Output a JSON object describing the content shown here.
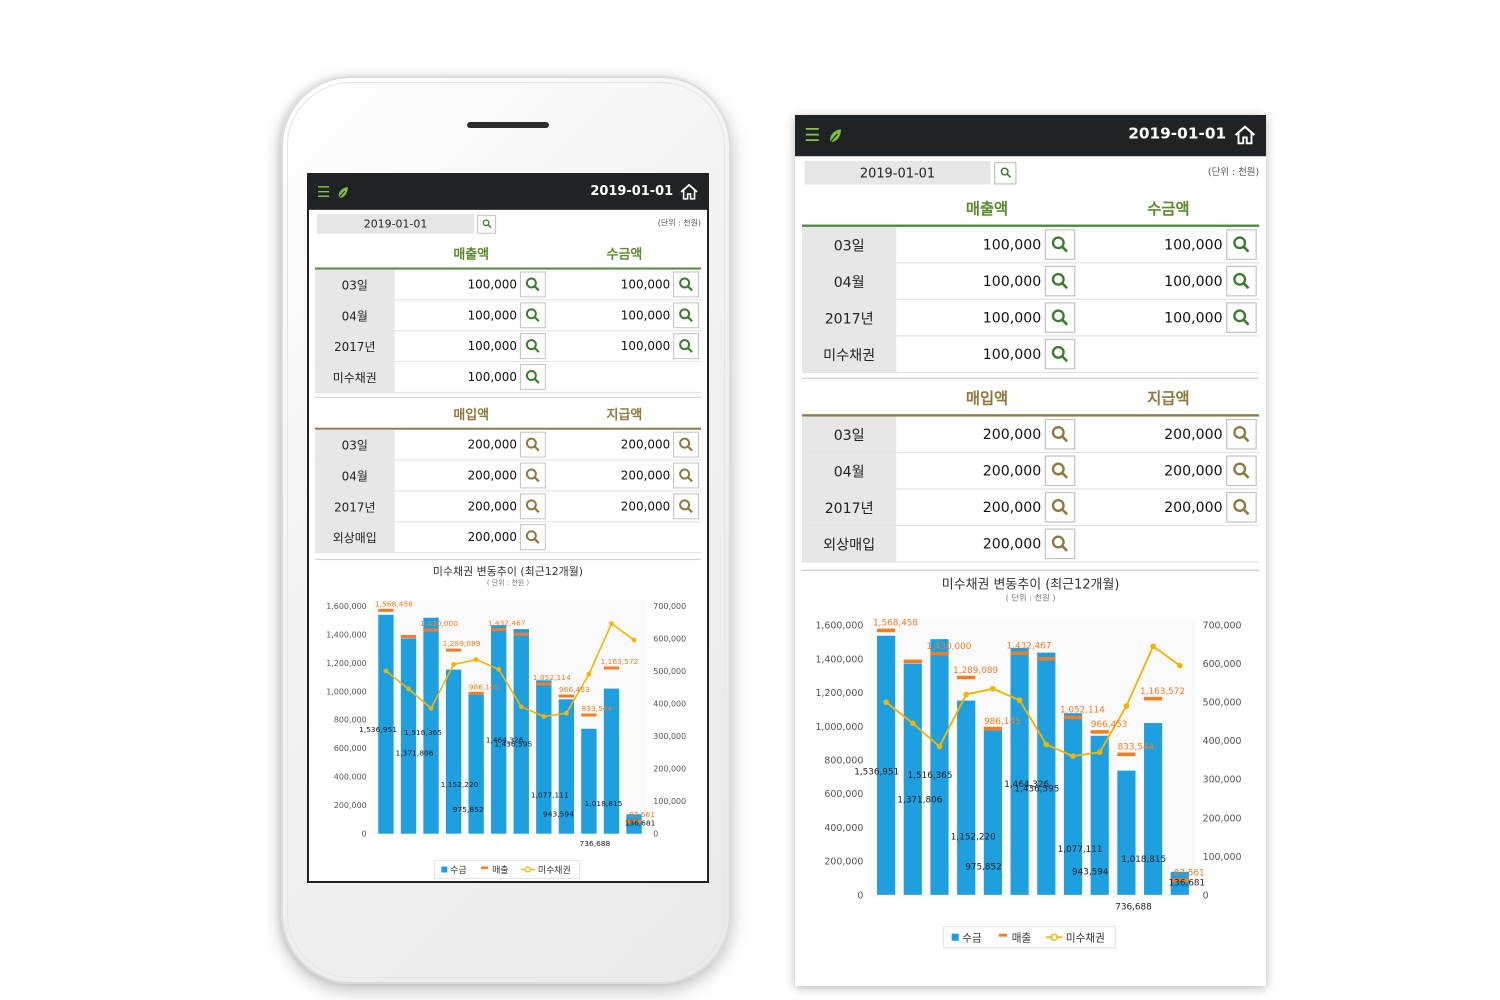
{
  "header": {
    "date": "2019-01-01"
  },
  "filter": {
    "date_value": "2019-01-01",
    "unit_label": "(단위 : 천원)"
  },
  "sales": {
    "headers": [
      "매출액",
      "수금액"
    ],
    "rows": [
      {
        "label": "03일",
        "col1": "100,000",
        "col2": "100,000"
      },
      {
        "label": "04월",
        "col1": "100,000",
        "col2": "100,000"
      },
      {
        "label": "2017년",
        "col1": "100,000",
        "col2": "100,000"
      },
      {
        "label": "미수채권",
        "col1": "100,000",
        "col2": ""
      }
    ]
  },
  "purchase": {
    "headers": [
      "매입액",
      "지급액"
    ],
    "rows": [
      {
        "label": "03일",
        "col1": "200,000",
        "col2": "200,000"
      },
      {
        "label": "04월",
        "col1": "200,000",
        "col2": "200,000"
      },
      {
        "label": "2017년",
        "col1": "200,000",
        "col2": "200,000"
      },
      {
        "label": "외상매입",
        "col1": "200,000",
        "col2": ""
      }
    ]
  },
  "colors": {
    "green": "#5a8a2e",
    "brown": "#8c7a3e",
    "bar": "#1e9fe0",
    "sales": "#f57c1f",
    "receivable": "#f4b400"
  },
  "chart_data": {
    "type": "bar",
    "title": "미수채권 변동추이 (최근12개월)",
    "subtitle": "( 단위 : 천원 )",
    "y_left": {
      "min": 0,
      "max": 1600000,
      "ticks": [
        "0",
        "200,000",
        "400,000",
        "600,000",
        "800,000",
        "1,000,000",
        "1,200,000",
        "1,400,000",
        "1,600,000"
      ]
    },
    "y_right": {
      "min": 0,
      "max": 700000,
      "ticks": [
        "0",
        "100,000",
        "200,000",
        "300,000",
        "400,000",
        "500,000",
        "600,000",
        "700,000"
      ]
    },
    "series": [
      {
        "name": "수금",
        "kind": "bar",
        "axis": "left",
        "values": [
          1536951,
          1371806,
          1516365,
          1152220,
          975852,
          1464326,
          1436595,
          1077111,
          943594,
          736688,
          1018815,
          136681
        ],
        "labels": [
          "1,536,951",
          "1,371,806",
          "1,516,365",
          "1,152,220",
          "975,852",
          "1,464,326",
          "1,436,595",
          "1,077,111",
          "943,594",
          "736,688",
          "1,018,815",
          "136,681"
        ]
      },
      {
        "name": "매출",
        "kind": "marker",
        "axis": "left",
        "values": [
          1568458,
          1385000,
          1430000,
          1289089,
          986145,
          1432467,
          1400000,
          1052114,
          966453,
          833544,
          1163572,
          87561
        ],
        "labels": [
          "1,568,458",
          "",
          "1,430,000",
          "1,289,089",
          "986,145",
          "1,432,467",
          "",
          "1,052,114",
          "966,453",
          "833,544",
          "1,163,572",
          "87,561"
        ]
      },
      {
        "name": "미수채권",
        "kind": "line",
        "axis": "right",
        "values": [
          500000,
          445000,
          385000,
          520000,
          535000,
          505000,
          390000,
          360000,
          370000,
          490000,
          645000,
          595000
        ]
      }
    ],
    "legend": [
      "수금",
      "매출",
      "미수채권"
    ],
    "legend_position": "bottom"
  }
}
